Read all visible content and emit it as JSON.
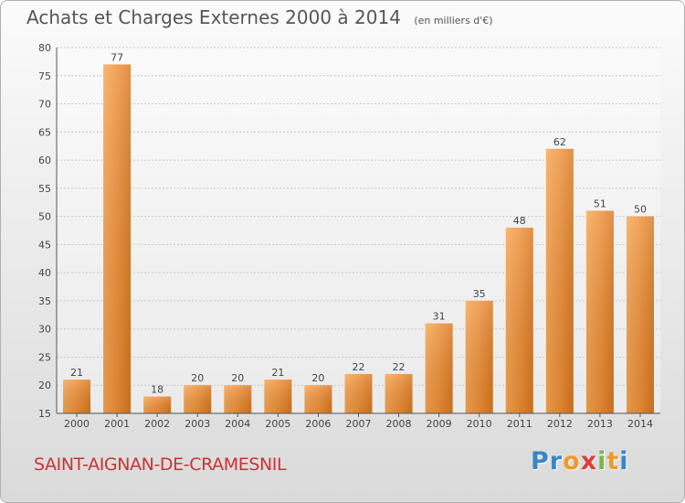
{
  "chart_data": {
    "type": "bar",
    "title": "Achats et Charges Externes 2000 à 2014",
    "subtitle": "(en milliers d'€)",
    "categories": [
      "2000",
      "2001",
      "2002",
      "2003",
      "2004",
      "2005",
      "2006",
      "2007",
      "2008",
      "2009",
      "2010",
      "2011",
      "2012",
      "2013",
      "2014"
    ],
    "values": [
      21,
      77,
      18,
      20,
      20,
      21,
      20,
      22,
      22,
      31,
      35,
      48,
      62,
      51,
      50
    ],
    "ylim": [
      15,
      80
    ],
    "yticks": [
      15,
      20,
      25,
      30,
      35,
      40,
      45,
      50,
      55,
      60,
      65,
      70,
      75,
      80
    ],
    "xlabel": "",
    "ylabel": "",
    "grid": true,
    "bar_color": "#f0903a"
  },
  "footer": {
    "place": "SAINT-AIGNAN-DE-CRAMESNIL",
    "logo_letters": [
      "P",
      "r",
      "o",
      "x",
      "i",
      "t",
      "i"
    ],
    "logo_colors": [
      "#3a86c8",
      "#3a86c8",
      "#f09a2c",
      "#e03c3c",
      "#7ab648",
      "#f09a2c",
      "#3a86c8"
    ]
  }
}
